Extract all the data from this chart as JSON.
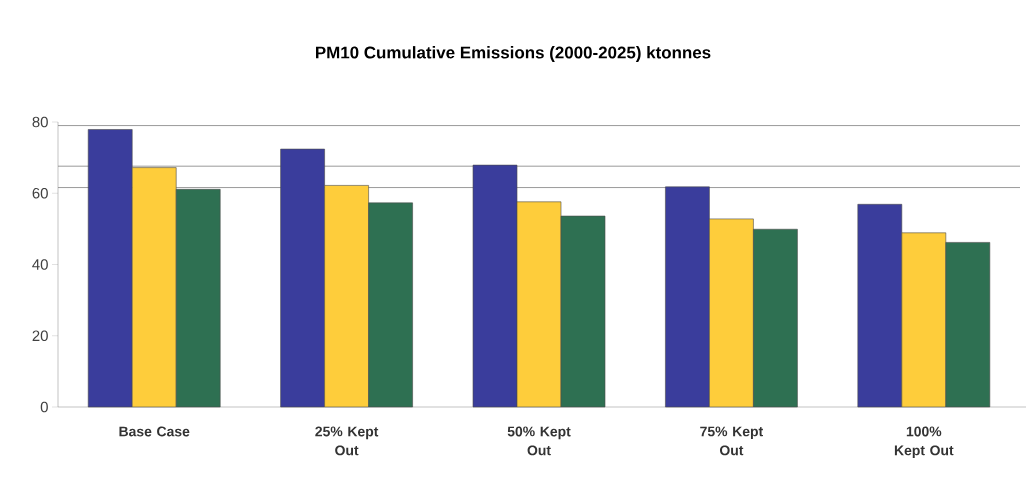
{
  "chart_data": {
    "type": "bar",
    "title": "PM10 Cumulative Emissions (2000-2025) ktonnes",
    "categories": [
      "Base Case",
      "25% Kept Out",
      "50% Kept Out",
      "75% Kept Out",
      "100% Kept Out"
    ],
    "series": [
      {
        "color": "#3a3d9c",
        "values": [
          77.9,
          72.4,
          67.9,
          61.8,
          56.9
        ]
      },
      {
        "color": "#fecd3b",
        "values": [
          67.2,
          62.2,
          57.6,
          52.8,
          48.9
        ]
      },
      {
        "color": "#2e7052",
        "values": [
          61.1,
          57.3,
          53.6,
          49.9,
          46.2
        ]
      }
    ],
    "ylim": [
      0,
      80
    ],
    "yticks": [
      0,
      20,
      40,
      60,
      80
    ],
    "ref_lines": [
      {
        "axis": "y",
        "value": 79,
        "color": "#808080"
      },
      {
        "axis": "y",
        "value": 67.6,
        "color": "#808080"
      },
      {
        "axis": "y",
        "value": 61.6,
        "color": "#808080"
      }
    ],
    "grid": false,
    "legend": false
  }
}
